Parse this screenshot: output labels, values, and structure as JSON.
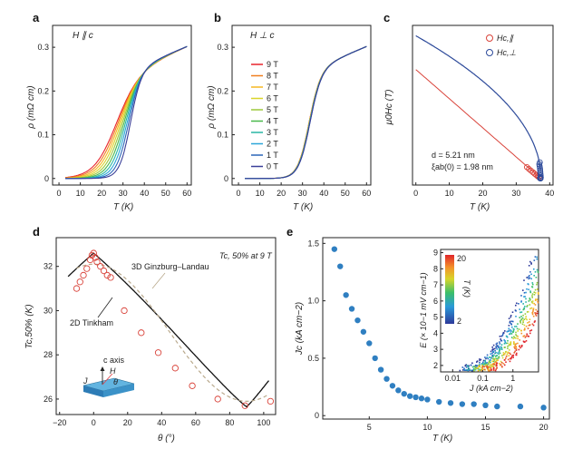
{
  "chart_data": [
    {
      "panel": "a",
      "type": "line",
      "annotation": "H ∥ c",
      "xlabel": "T (K)",
      "ylabel": "ρ (mΩ cm)",
      "xlim": [
        -3,
        62
      ],
      "ylim": [
        -0.015,
        0.35
      ],
      "xticks": [
        "0",
        "10",
        "20",
        "30",
        "40",
        "50",
        "60"
      ],
      "yticks": [
        "0",
        "0.1",
        "0.2",
        "0.3"
      ],
      "series_fields_T": [
        0,
        1,
        2,
        3,
        4,
        5,
        6,
        7,
        8,
        9
      ],
      "midpoints_K": [
        33.3,
        32.4,
        31.6,
        30.8,
        30.0,
        29.2,
        28.4,
        27.6,
        26.8,
        26.0
      ],
      "widths_K": [
        2.6,
        2.9,
        3.2,
        3.5,
        3.8,
        4.1,
        4.4,
        4.7,
        5.0,
        5.3
      ],
      "normal_state": {
        "a": 0.218,
        "b": 0.0021,
        "T0": 20
      }
    },
    {
      "panel": "b",
      "type": "line",
      "annotation": "H ⊥ c",
      "xlabel": "T (K)",
      "ylabel": "ρ (mΩ cm)",
      "xlim": [
        -3,
        62
      ],
      "ylim": [
        -0.015,
        0.35
      ],
      "xticks": [
        "0",
        "10",
        "20",
        "30",
        "40",
        "50",
        "60"
      ],
      "yticks": [
        "0",
        "0.1",
        "0.2",
        "0.3"
      ],
      "legend": [
        {
          "label": "9 T",
          "color": "#e8242b"
        },
        {
          "label": "8 T",
          "color": "#f07f1f"
        },
        {
          "label": "7 T",
          "color": "#f5b822"
        },
        {
          "label": "6 T",
          "color": "#d9d52a"
        },
        {
          "label": "5 T",
          "color": "#9cc83c"
        },
        {
          "label": "4 T",
          "color": "#48b84b"
        },
        {
          "label": "3 T",
          "color": "#28b6a4"
        },
        {
          "label": "2 T",
          "color": "#2aa6d8"
        },
        {
          "label": "1 T",
          "color": "#2b66b8"
        },
        {
          "label": "0 T",
          "color": "#3a3f98"
        }
      ],
      "midpoints_K": [
        33.3,
        33.25,
        33.2,
        33.15,
        33.1,
        33.05,
        33.0,
        32.95,
        32.9,
        32.85
      ],
      "widths_K": 2.7
    },
    {
      "panel": "c",
      "type": "scatter",
      "xlabel": "T (K)",
      "ylabel": "μ0Hc (T)",
      "xlim": [
        -1,
        41
      ],
      "ylim": [
        -5,
        118
      ],
      "xticks": [
        "0",
        "10",
        "20",
        "30",
        "40"
      ],
      "legend": [
        {
          "label": "Hc,∥",
          "color": "#d9433a"
        },
        {
          "label": "Hc,⊥",
          "color": "#2d4a9a"
        }
      ],
      "text_d": "d = 5.21 nm",
      "text_xi": "ξab(0) = 1.98 nm",
      "Tc_K": 37.4,
      "Hc_par_0": 84,
      "Hc_perp_0": 110,
      "par_points": {
        "T": [
          33.2,
          33.8,
          34.4,
          35.0,
          35.5,
          36.0,
          36.4,
          36.8,
          37.1
        ],
        "H": [
          8.8,
          7.4,
          6.1,
          4.8,
          3.7,
          2.7,
          1.8,
          1.1,
          0.5
        ]
      },
      "perp_points": {
        "T": [
          36.9,
          37.0,
          37.1,
          37.15,
          37.2,
          37.25,
          37.3,
          37.35,
          37.1,
          37.05,
          37.2,
          37.3
        ],
        "H": [
          11,
          9.5,
          8,
          6.5,
          5,
          3.5,
          2.2,
          1,
          0.2,
          12.5,
          0.6,
          0.1
        ]
      }
    },
    {
      "panel": "d",
      "type": "scatter",
      "xlabel": "θ (°)",
      "ylabel": "Tc,50% (K)",
      "xlim": [
        -22,
        107
      ],
      "ylim": [
        25.3,
        33.3
      ],
      "xticks": [
        "−20",
        "0",
        "20",
        "40",
        "60",
        "80",
        "100"
      ],
      "yticks": [
        "26",
        "28",
        "30",
        "32"
      ],
      "title": "Tc, 50% at 9 T",
      "fit_labels": [
        "3D Ginzburg–Landau",
        "2D Tinkham"
      ],
      "inset_labels": {
        "c_axis": "c axis",
        "J": "J",
        "H": "H",
        "theta": "θ"
      },
      "points": {
        "theta": [
          -10,
          -8,
          -6,
          -4,
          -2,
          -1,
          0,
          1,
          2,
          4,
          6,
          8,
          10,
          18,
          28,
          38,
          48,
          58,
          73,
          89,
          104
        ],
        "T": [
          31.0,
          31.3,
          31.6,
          31.9,
          32.3,
          32.5,
          32.6,
          32.4,
          32.2,
          32.0,
          31.8,
          31.6,
          31.5,
          30.0,
          29.0,
          28.1,
          27.4,
          26.6,
          26.0,
          25.7,
          25.9
        ]
      }
    },
    {
      "panel": "e",
      "type": "scatter",
      "xlabel": "T (K)",
      "ylabel": "Jc (kA cm−2)",
      "xlim": [
        1,
        20.5
      ],
      "ylim": [
        -0.03,
        1.55
      ],
      "xticks": [
        "5",
        "10",
        "15",
        "20"
      ],
      "yticks": [
        "0",
        "0.5",
        "1.0",
        "1.5"
      ],
      "points": {
        "T": [
          2,
          2.5,
          3,
          3.5,
          4,
          4.5,
          5,
          5.5,
          6,
          6.5,
          7,
          7.5,
          8,
          8.5,
          9,
          9.5,
          10,
          11,
          12,
          13,
          14,
          15,
          16,
          18,
          20
        ],
        "Jc": [
          1.45,
          1.3,
          1.05,
          0.93,
          0.83,
          0.73,
          0.63,
          0.5,
          0.4,
          0.32,
          0.26,
          0.22,
          0.19,
          0.17,
          0.16,
          0.15,
          0.14,
          0.12,
          0.11,
          0.1,
          0.1,
          0.09,
          0.08,
          0.08,
          0.07
        ]
      },
      "inset": {
        "xlabel": "J (kA cm−2)",
        "ylabel": "E (× 10−1 mV cm−1)",
        "xticks": [
          "0.01",
          "0.1",
          "1"
        ],
        "yticks": [
          "2",
          "3",
          "4",
          "5",
          "6",
          "7",
          "8",
          "9"
        ],
        "colorbar_label": "T (K)",
        "colorbar_ticks": [
          "20",
          "2"
        ]
      }
    }
  ]
}
